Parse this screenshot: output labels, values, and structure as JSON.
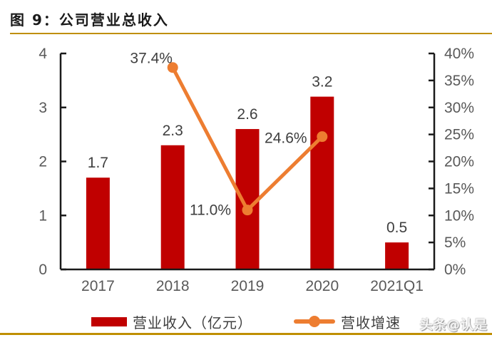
{
  "title": "图 9：公司营业总收入",
  "watermark": "头条@认是",
  "colors": {
    "bar": "#c00000",
    "line": "#ed7d31",
    "axis": "#1a1a1a",
    "tick_label": "#595959",
    "data_label": "#3f3f3f",
    "divider": "#bf8f00",
    "title": "#1a1a1a"
  },
  "legend": {
    "items": [
      {
        "label": "营业收入（亿元）",
        "marker": "bar-swatch",
        "color": "#c00000"
      },
      {
        "label": "营收增速",
        "marker": "line-dot-swatch",
        "color": "#ed7d31"
      }
    ]
  },
  "chart_data": {
    "type": "bar",
    "subtype": "bar+line dual-axis combo",
    "categories": [
      "2017",
      "2018",
      "2019",
      "2020",
      "2021Q1"
    ],
    "series": [
      {
        "name": "营业收入（亿元）",
        "type": "bar",
        "axis": "left",
        "color": "#c00000",
        "values": [
          1.7,
          2.3,
          2.6,
          3.2,
          0.5
        ],
        "labels": [
          "1.7",
          "2.3",
          "2.6",
          "3.2",
          "0.5"
        ]
      },
      {
        "name": "营收增速",
        "type": "line",
        "axis": "right",
        "color": "#ed7d31",
        "values": [
          null,
          37.4,
          11.0,
          24.6,
          null
        ],
        "labels": [
          null,
          "37.4%",
          "11.0%",
          "24.6%",
          null
        ]
      }
    ],
    "left_axis": {
      "min": 0,
      "max": 4,
      "tick_labels": [
        "0",
        "1",
        "2",
        "3",
        "4"
      ]
    },
    "right_axis": {
      "min": 0,
      "max": 40,
      "tick_labels": [
        "0%",
        "5%",
        "10%",
        "15%",
        "20%",
        "25%",
        "30%",
        "35%",
        "40%"
      ]
    },
    "grid": "off",
    "legend_position": "bottom"
  }
}
